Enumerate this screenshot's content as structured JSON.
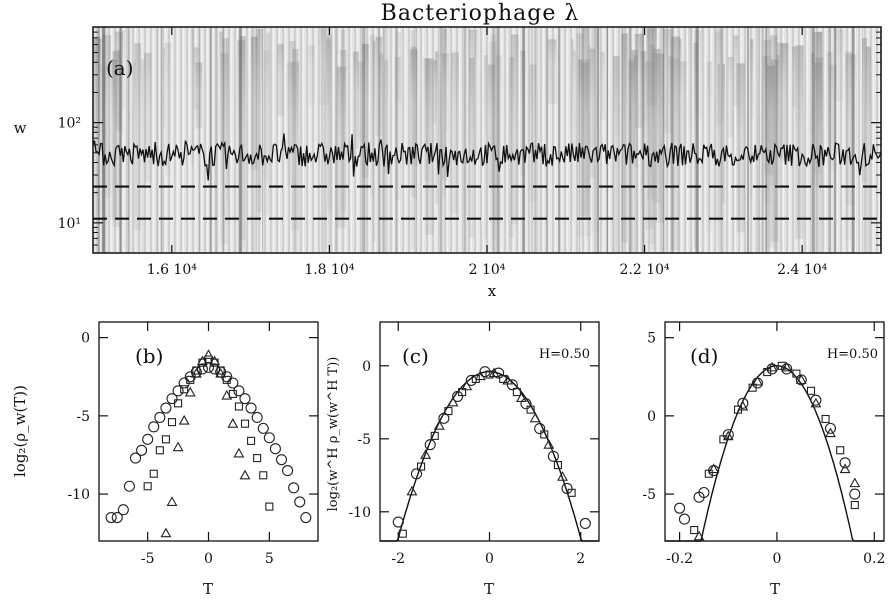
{
  "figure": {
    "title": "Bacteriophage λ",
    "panel_a": {
      "label": "(a)",
      "xlabel": "x",
      "ylabel": "w",
      "x_tick_labels": [
        "1.6 10⁴",
        "1.8 10⁴",
        "2 10⁴",
        "2.2 10⁴",
        "2.4 10⁴"
      ],
      "y_tick_labels": [
        "10¹",
        "10²"
      ]
    },
    "panel_b": {
      "label": "(b)",
      "xlabel": "T",
      "ylabel": "log₂(ρ_w(T))",
      "x_tick_labels": [
        "-5",
        "0",
        "5"
      ],
      "y_tick_labels": [
        "0",
        "-5",
        "-10"
      ]
    },
    "panel_c": {
      "label": "(c)",
      "annotation": "H=0.50",
      "xlabel": "T",
      "ylabel": "log₂(w^H ρ_w(w^H T))",
      "x_tick_labels": [
        "-2",
        "0",
        "2"
      ],
      "y_tick_labels": [
        "0",
        "-5",
        "-10"
      ]
    },
    "panel_d": {
      "label": "(d)",
      "annotation": "H=0.50",
      "xlabel": "T",
      "x_tick_labels": [
        "-0.2",
        "0",
        "0.2"
      ],
      "y_tick_labels": [
        "5",
        "0",
        "-5"
      ]
    }
  },
  "chart_data": [
    {
      "type": "heatmap",
      "panel": "a",
      "xlim": [
        15000,
        25000
      ],
      "ylim": [
        5,
        900
      ],
      "y_scale": "log",
      "xticks": [
        16000,
        18000,
        20000,
        22000,
        24000
      ],
      "yticks": [
        10,
        100
      ],
      "series": [
        {
          "style": "solid",
          "values_description": "fluctuating line",
          "mean_w": 48
        },
        {
          "style": "dashed",
          "w": 23
        },
        {
          "style": "dashed",
          "w": 11
        }
      ]
    },
    {
      "type": "scatter",
      "panel": "b",
      "xlim": [
        -9,
        9
      ],
      "ylim": [
        -13,
        1
      ],
      "xticks": [
        -5,
        0,
        5
      ],
      "yticks": [
        0,
        -5,
        -10
      ],
      "series": [
        {
          "marker": "circle",
          "points": [
            [
              -8,
              -11.5
            ],
            [
              -7.5,
              -11.5
            ],
            [
              -7,
              -11
            ],
            [
              -6.5,
              -9.5
            ],
            [
              -6,
              -7.7
            ],
            [
              -5.5,
              -7.2
            ],
            [
              -5,
              -6.5
            ],
            [
              -4.5,
              -5.7
            ],
            [
              -4,
              -5.1
            ],
            [
              -3.5,
              -4.5
            ],
            [
              -3,
              -3.9
            ],
            [
              -2.5,
              -3.4
            ],
            [
              -2,
              -2.9
            ],
            [
              -1.5,
              -2.5
            ],
            [
              -1,
              -2.2
            ],
            [
              -0.5,
              -2
            ],
            [
              0,
              -1.9
            ],
            [
              0.5,
              -2
            ],
            [
              1,
              -2.2
            ],
            [
              1.5,
              -2.5
            ],
            [
              2,
              -2.9
            ],
            [
              2.5,
              -3.4
            ],
            [
              3,
              -3.9
            ],
            [
              3.5,
              -4.5
            ],
            [
              4,
              -5.1
            ],
            [
              4.5,
              -5.8
            ],
            [
              5,
              -6.4
            ],
            [
              5.5,
              -7.1
            ],
            [
              6,
              -7.8
            ],
            [
              6.5,
              -8.5
            ],
            [
              7,
              -9.6
            ],
            [
              7.5,
              -10.5
            ],
            [
              8,
              -11.5
            ]
          ]
        },
        {
          "marker": "square",
          "points": [
            [
              -5,
              -9.5
            ],
            [
              -4.5,
              -8.7
            ],
            [
              -4,
              -7.2
            ],
            [
              -3.5,
              -6.5
            ],
            [
              -3,
              -5.4
            ],
            [
              -2.5,
              -4.2
            ],
            [
              -2,
              -3.3
            ],
            [
              -1.5,
              -2.7
            ],
            [
              -1,
              -2.1
            ],
            [
              -0.5,
              -1.6
            ],
            [
              0,
              -1.4
            ],
            [
              0.5,
              -1.6
            ],
            [
              1,
              -2.1
            ],
            [
              1.5,
              -2.7
            ],
            [
              2,
              -3.6
            ],
            [
              2.5,
              -4.4
            ],
            [
              3,
              -5.5
            ],
            [
              3.5,
              -6.6
            ],
            [
              4,
              -7.7
            ],
            [
              4.5,
              -8.8
            ],
            [
              5,
              -10.8
            ]
          ]
        },
        {
          "marker": "triangle",
          "points": [
            [
              -3.5,
              -12.5
            ],
            [
              -3,
              -10.5
            ],
            [
              -2.5,
              -7
            ],
            [
              -2,
              -5.3
            ],
            [
              -1.5,
              -3.5
            ],
            [
              -1,
              -2.3
            ],
            [
              -0.5,
              -1.5
            ],
            [
              0,
              -1.1
            ],
            [
              0.5,
              -1.5
            ],
            [
              1,
              -2.3
            ],
            [
              1.5,
              -3.7
            ],
            [
              2,
              -5.5
            ],
            [
              2.5,
              -7.4
            ],
            [
              3,
              -8.8
            ]
          ]
        }
      ]
    },
    {
      "type": "scatter",
      "panel": "c",
      "xlim": [
        -2.4,
        2.4
      ],
      "ylim": [
        -12,
        3
      ],
      "xticks": [
        -2,
        0,
        2
      ],
      "yticks": [
        0,
        -5,
        -10
      ],
      "series": [
        {
          "marker": "circle",
          "points": [
            [
              -2,
              -10.7
            ],
            [
              -1.6,
              -7.4
            ],
            [
              -1.3,
              -5.4
            ],
            [
              -1,
              -3.6
            ],
            [
              -0.7,
              -2.1
            ],
            [
              -0.4,
              -1
            ],
            [
              -0.1,
              -0.4
            ],
            [
              0.2,
              -0.5
            ],
            [
              0.5,
              -1.3
            ],
            [
              0.8,
              -2.6
            ],
            [
              1.1,
              -4.3
            ],
            [
              1.4,
              -6.2
            ],
            [
              1.7,
              -8.4
            ],
            [
              2.1,
              -10.8
            ]
          ]
        },
        {
          "marker": "square",
          "points": [
            [
              -1.9,
              -11.5
            ],
            [
              -1.5,
              -6.9
            ],
            [
              -1.2,
              -4.8
            ],
            [
              -0.9,
              -3.1
            ],
            [
              -0.6,
              -1.8
            ],
            [
              -0.3,
              -0.9
            ],
            [
              0,
              -0.6
            ],
            [
              0.3,
              -0.9
            ],
            [
              0.6,
              -1.8
            ],
            [
              0.9,
              -3
            ],
            [
              1.2,
              -4.7
            ],
            [
              1.5,
              -6.8
            ],
            [
              1.8,
              -8.7
            ]
          ]
        },
        {
          "marker": "triangle",
          "points": [
            [
              -1.7,
              -8.6
            ],
            [
              -1.4,
              -6.1
            ],
            [
              -1.1,
              -4.1
            ],
            [
              -0.8,
              -2.5
            ],
            [
              -0.5,
              -1.4
            ],
            [
              -0.2,
              -0.7
            ],
            [
              0.1,
              -0.5
            ],
            [
              0.4,
              -1
            ],
            [
              0.7,
              -2.2
            ],
            [
              1,
              -3.6
            ],
            [
              1.3,
              -5.4
            ],
            [
              1.6,
              -7.6
            ]
          ]
        }
      ],
      "fit_curve": {
        "form": "parabola",
        "peak": -0.4,
        "curvature": 2.85
      }
    },
    {
      "type": "scatter",
      "panel": "d",
      "xlim": [
        -0.23,
        0.22
      ],
      "ylim": [
        -8,
        6
      ],
      "xticks": [
        -0.2,
        0,
        0.2
      ],
      "yticks": [
        5,
        0,
        -5
      ],
      "series": [
        {
          "marker": "circle",
          "points": [
            [
              -0.2,
              -5.9
            ],
            [
              -0.19,
              -6.6
            ],
            [
              -0.16,
              -5.2
            ],
            [
              -0.15,
              -4.9
            ],
            [
              -0.13,
              -3.5
            ],
            [
              -0.1,
              -1.2
            ],
            [
              -0.07,
              0.8
            ],
            [
              -0.04,
              2.1
            ],
            [
              -0.01,
              3
            ],
            [
              0.02,
              3
            ],
            [
              0.05,
              2.3
            ],
            [
              0.08,
              1
            ],
            [
              0.11,
              -0.8
            ],
            [
              0.14,
              -3
            ],
            [
              0.16,
              -5
            ]
          ]
        },
        {
          "marker": "square",
          "points": [
            [
              -0.17,
              -7.3
            ],
            [
              -0.14,
              -3.7
            ],
            [
              -0.11,
              -1.5
            ],
            [
              -0.08,
              0.4
            ],
            [
              -0.05,
              1.8
            ],
            [
              -0.02,
              2.8
            ],
            [
              0.01,
              3.2
            ],
            [
              0.04,
              2.7
            ],
            [
              0.07,
              1.6
            ],
            [
              0.1,
              -0.2
            ],
            [
              0.13,
              -2.2
            ],
            [
              0.16,
              -5.7
            ]
          ]
        },
        {
          "marker": "triangle",
          "points": [
            [
              -0.16,
              -7.7
            ],
            [
              -0.13,
              -3.4
            ],
            [
              -0.1,
              -1.3
            ],
            [
              -0.07,
              0.6
            ],
            [
              -0.04,
              2.2
            ],
            [
              -0.01,
              3.1
            ],
            [
              0.02,
              3.1
            ],
            [
              0.05,
              2.3
            ],
            [
              0.08,
              0.8
            ],
            [
              0.11,
              -1.1
            ],
            [
              0.14,
              -3.4
            ],
            [
              0.16,
              -4.3
            ]
          ]
        }
      ],
      "fit_curve": {
        "form": "parabola",
        "peak": 3.2,
        "curvature": 460
      }
    }
  ]
}
